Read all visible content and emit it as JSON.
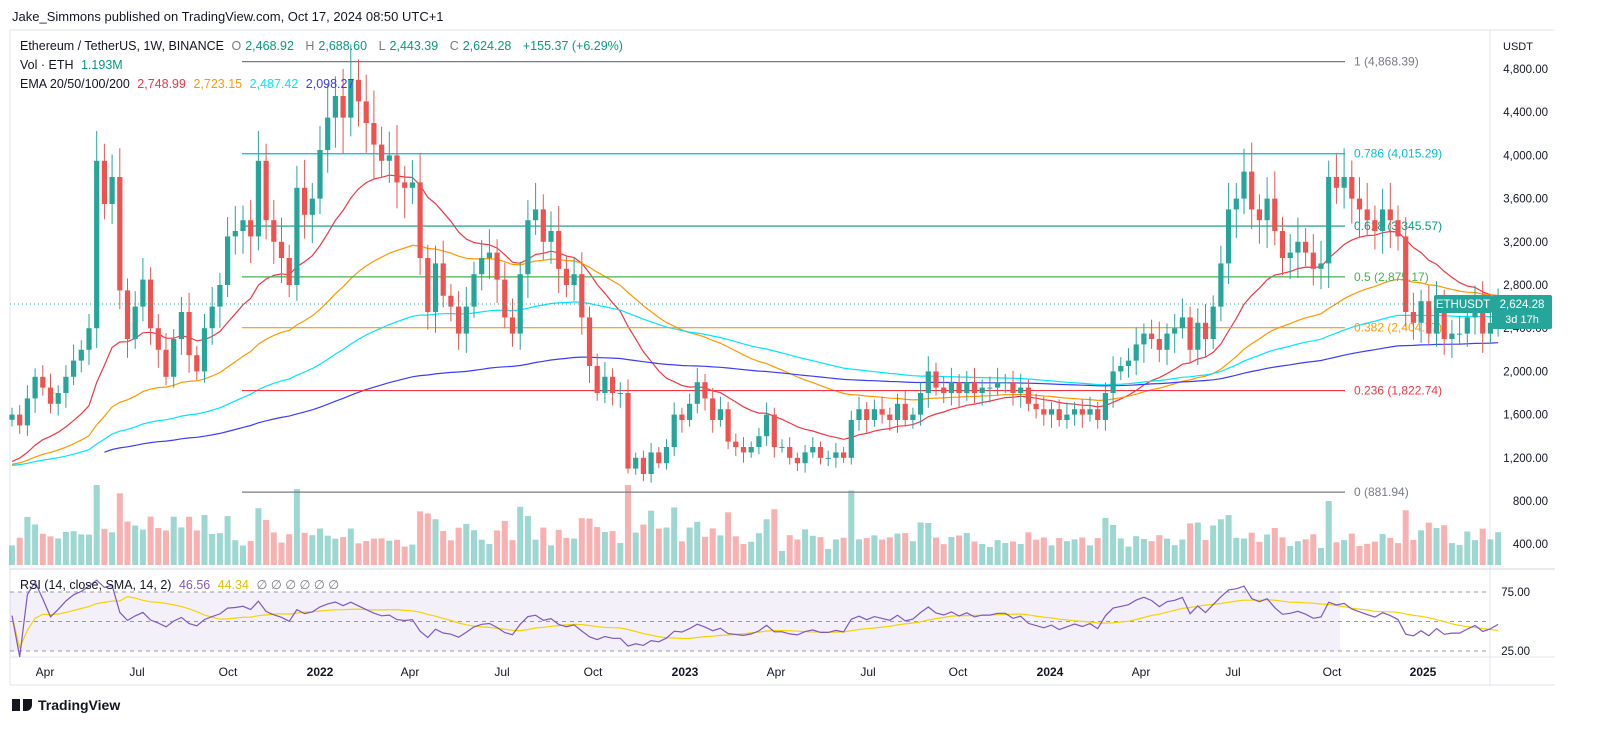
{
  "header": {
    "published": "Jake_Simmons published on TradingView.com, Oct 17, 2024 08:50 UTC+1"
  },
  "legend": {
    "symbol": "Ethereum / TetherUS, 1W, BINANCE",
    "o_label": "O",
    "o": "2,468.92",
    "h_label": "H",
    "h": "2,688.60",
    "l_label": "L",
    "l": "2,443.39",
    "c_label": "C",
    "c": "2,624.28",
    "change": "+155.37 (+6.29%)",
    "vol_label": "Vol · ETH",
    "vol": "1.193M",
    "ema_label": "EMA 20/50/100/200",
    "ema20": "2,748.99",
    "ema50": "2,723.15",
    "ema100": "2,487.42",
    "ema200": "2,098.27",
    "rsi_label": "RSI (14, close, SMA, 14, 2)",
    "rsi": "46.56",
    "rsi_sma": "44.34",
    "rsi_empty": "∅ ∅ ∅ ∅ ∅ ∅"
  },
  "price_axis": {
    "unit": "USDT",
    "ticks": [
      "4,800.00",
      "4,400.00",
      "4,000.00",
      "3,600.00",
      "3,200.00",
      "2,800.00",
      "2,400.00",
      "2,000.00",
      "1,600.00",
      "1,200.00",
      "800.00",
      "400.00"
    ],
    "tick_values": [
      4800,
      4400,
      4000,
      3600,
      3200,
      2800,
      2400,
      2000,
      1600,
      1200,
      800,
      400
    ]
  },
  "rsi_axis": {
    "ticks": [
      "75.00",
      "25.00"
    ],
    "tick_values": [
      75,
      25
    ]
  },
  "last_price": {
    "symbol": "ETHUSDT",
    "price": "2,624.28",
    "countdown": "3d 17h"
  },
  "time_axis": [
    {
      "label": "Apr",
      "year": false
    },
    {
      "label": "Jul",
      "year": false
    },
    {
      "label": "Oct",
      "year": false
    },
    {
      "label": "2022",
      "year": true
    },
    {
      "label": "Apr",
      "year": false
    },
    {
      "label": "Jul",
      "year": false
    },
    {
      "label": "Oct",
      "year": false
    },
    {
      "label": "2023",
      "year": true
    },
    {
      "label": "Apr",
      "year": false
    },
    {
      "label": "Jul",
      "year": false
    },
    {
      "label": "Oct",
      "year": false
    },
    {
      "label": "2024",
      "year": true
    },
    {
      "label": "Apr",
      "year": false
    },
    {
      "label": "Jul",
      "year": false
    },
    {
      "label": "Oct",
      "year": false
    },
    {
      "label": "2025",
      "year": true
    }
  ],
  "footer": {
    "brand": "TradingView"
  },
  "colors": {
    "up": "#26a69a",
    "down": "#ef5350",
    "ema20": "#f23645",
    "ema50": "#ff9800",
    "ema100": "#00e5ff",
    "ema200": "#3d3df5",
    "rsi": "#7e57c2",
    "rsi_sma": "#f5d300"
  },
  "chart_data": {
    "type": "candlestick",
    "title": "Ethereum / TetherUS, 1W, BINANCE",
    "x_start": "2021-01-25",
    "interval": "1W",
    "ylim": [
      200,
      5000
    ],
    "fib_levels": [
      {
        "ratio": "1",
        "label": "1 (4,868.39)",
        "value": 4868.39,
        "color": "#787b86"
      },
      {
        "ratio": "0.786",
        "label": "0.786 (4,015.29)",
        "value": 4015.29,
        "color": "#00bcd4"
      },
      {
        "ratio": "0.618",
        "label": "0.618 (3,345.57)",
        "value": 3345.57,
        "color": "#089981"
      },
      {
        "ratio": "0.5",
        "label": "0.5 (2,875.17)",
        "value": 2875.17,
        "color": "#4caf50"
      },
      {
        "ratio": "0.382",
        "label": "0.382 (2,404.77)",
        "value": 2404.77,
        "color": "#ff9800"
      },
      {
        "ratio": "0.236",
        "label": "0.236 (1,822.74)",
        "value": 1822.74,
        "color": "#f23645"
      },
      {
        "ratio": "0",
        "label": "0 (881.94)",
        "value": 881.94,
        "color": "#787b86"
      }
    ],
    "close": [
      1600,
      1500,
      1750,
      1950,
      1850,
      1700,
      1800,
      1950,
      2100,
      2200,
      2400,
      3950,
      3550,
      3800,
      2750,
      2300,
      2600,
      2850,
      2400,
      2200,
      1950,
      2300,
      2550,
      2150,
      2000,
      2400,
      2600,
      2800,
      3250,
      3300,
      3400,
      3250,
      3950,
      3400,
      3200,
      3050,
      2800,
      3700,
      3450,
      3600,
      4050,
      4350,
      4550,
      4350,
      4700,
      4500,
      4300,
      4100,
      3950,
      4000,
      3750,
      3700,
      3750,
      3050,
      2550,
      3000,
      2700,
      2600,
      2350,
      2600,
      2900,
      3050,
      3100,
      2850,
      2500,
      2350,
      2900,
      3400,
      3500,
      3200,
      3300,
      2950,
      2800,
      2900,
      2500,
      2050,
      1800,
      1950,
      1800,
      1800,
      1100,
      1200,
      1050,
      1250,
      1150,
      1300,
      1600,
      1550,
      1700,
      1900,
      1750,
      1550,
      1650,
      1350,
      1300,
      1250,
      1300,
      1400,
      1600,
      1300,
      1300,
      1200,
      1150,
      1250,
      1300,
      1200,
      1200,
      1250,
      1200,
      1550,
      1650,
      1550,
      1650,
      1600,
      1550,
      1700,
      1550,
      1600,
      1800,
      2000,
      1850,
      1800,
      1900,
      1800,
      1900,
      1800,
      1850,
      1850,
      1900,
      1900,
      1800,
      1850,
      1700,
      1650,
      1600,
      1650,
      1550,
      1600,
      1650,
      1600,
      1650,
      1550,
      1800,
      2000,
      2050,
      2100,
      2250,
      2350,
      2300,
      2200,
      2350,
      2400,
      2500,
      2200,
      2450,
      2300,
      2600,
      3000,
      3500,
      3600,
      3850,
      3500,
      3400,
      3600,
      3300,
      3050,
      3100,
      3200,
      3100,
      2950,
      3000,
      3800,
      3700,
      3800,
      3600,
      3500,
      3400,
      3300,
      3500,
      3400,
      3250,
      2550,
      2450,
      2650,
      2350,
      2650,
      2300,
      2350,
      2350,
      2500,
      2650,
      2350,
      2450,
      2624.28
    ],
    "open_ref": "previous close"
  }
}
